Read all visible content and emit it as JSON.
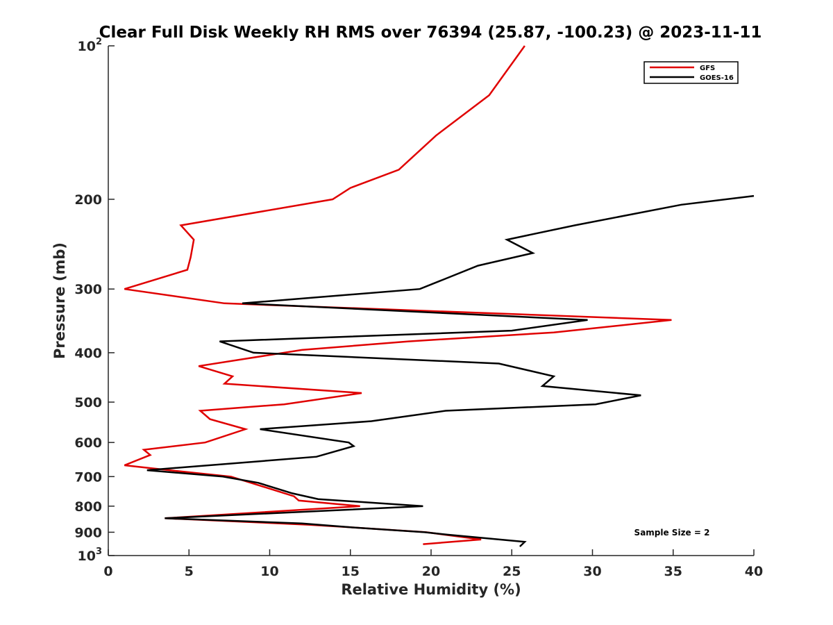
{
  "chart_data": {
    "type": "line",
    "title": "Clear Full Disk Weekly RH RMS over 76394 (25.87, -100.23) @ 2023-11-11",
    "xlabel": "Relative Humidity (%)",
    "ylabel": "Pressure (mb)",
    "xlim": [
      0,
      40
    ],
    "ylim": [
      100,
      1000
    ],
    "yscale": "log",
    "y_reversed": true,
    "grid": false,
    "legend_position": "top-right",
    "x_ticks": [
      0,
      5,
      10,
      15,
      20,
      25,
      30,
      35,
      40
    ],
    "y_ticks": [
      {
        "value": 100,
        "base": "10",
        "exp": "2"
      },
      {
        "value": 200,
        "label": "200"
      },
      {
        "value": 300,
        "label": "300"
      },
      {
        "value": 400,
        "label": "400"
      },
      {
        "value": 500,
        "label": "500"
      },
      {
        "value": 600,
        "label": "600"
      },
      {
        "value": 700,
        "label": "700"
      },
      {
        "value": 800,
        "label": "800"
      },
      {
        "value": 900,
        "label": "900"
      },
      {
        "value": 1000,
        "base": "10",
        "exp": "3"
      }
    ],
    "annotation": "Sample Size = 2",
    "series": [
      {
        "name": "GFS",
        "color": "#e00000",
        "points": [
          [
            25.8,
            100
          ],
          [
            23.6,
            125
          ],
          [
            20.3,
            150
          ],
          [
            18.0,
            175
          ],
          [
            15.0,
            190
          ],
          [
            13.9,
            200
          ],
          [
            4.5,
            225
          ],
          [
            5.3,
            240
          ],
          [
            5.1,
            260
          ],
          [
            4.9,
            275
          ],
          [
            1.0,
            300
          ],
          [
            7.2,
            320
          ],
          [
            34.9,
            345
          ],
          [
            27.6,
            365
          ],
          [
            18.6,
            380
          ],
          [
            12.0,
            395
          ],
          [
            5.6,
            425
          ],
          [
            7.7,
            445
          ],
          [
            7.2,
            460
          ],
          [
            15.7,
            480
          ],
          [
            10.9,
            505
          ],
          [
            5.7,
            520
          ],
          [
            6.3,
            540
          ],
          [
            8.5,
            565
          ],
          [
            6.0,
            600
          ],
          [
            2.2,
            620
          ],
          [
            2.6,
            635
          ],
          [
            1.0,
            665
          ],
          [
            3.8,
            680
          ],
          [
            7.6,
            700
          ],
          [
            11.5,
            765
          ],
          [
            11.8,
            780
          ],
          [
            15.6,
            800
          ],
          [
            3.5,
            845
          ],
          [
            12.4,
            870
          ],
          [
            15.0,
            880
          ],
          [
            19.7,
            900
          ],
          [
            23.1,
            930
          ],
          [
            19.5,
            950
          ]
        ]
      },
      {
        "name": "GOES-16",
        "color": "#000000",
        "points": [
          [
            40.0,
            197
          ],
          [
            35.5,
            205
          ],
          [
            28.9,
            225
          ],
          [
            24.7,
            240
          ],
          [
            26.3,
            255
          ],
          [
            22.9,
            270
          ],
          [
            19.3,
            300
          ],
          [
            8.3,
            320
          ],
          [
            29.7,
            345
          ],
          [
            25.0,
            362
          ],
          [
            6.9,
            380
          ],
          [
            9.0,
            400
          ],
          [
            24.2,
            420
          ],
          [
            27.6,
            445
          ],
          [
            26.9,
            465
          ],
          [
            33.0,
            485
          ],
          [
            30.2,
            505
          ],
          [
            20.9,
            520
          ],
          [
            16.3,
            545
          ],
          [
            9.4,
            565
          ],
          [
            14.9,
            600
          ],
          [
            15.2,
            610
          ],
          [
            12.9,
            640
          ],
          [
            2.4,
            680
          ],
          [
            7.1,
            700
          ],
          [
            9.3,
            720
          ],
          [
            11.4,
            755
          ],
          [
            13.0,
            775
          ],
          [
            19.5,
            800
          ],
          [
            3.5,
            845
          ],
          [
            12.0,
            865
          ],
          [
            15.0,
            880
          ],
          [
            19.6,
            900
          ],
          [
            21.0,
            910
          ],
          [
            25.8,
            940
          ],
          [
            25.5,
            960
          ]
        ]
      }
    ]
  }
}
